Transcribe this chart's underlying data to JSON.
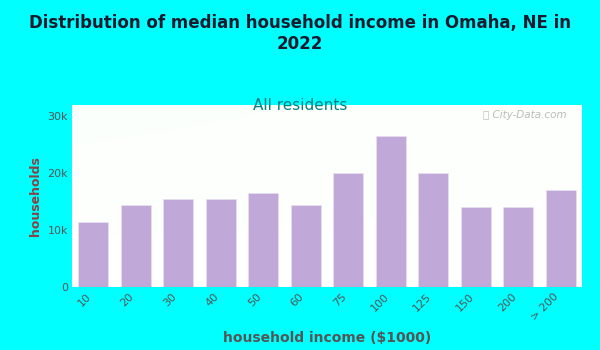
{
  "title": "Distribution of median household income in Omaha, NE in\n2022",
  "subtitle": "All residents",
  "xlabel": "household income ($1000)",
  "ylabel": "households",
  "background_color": "#00FFFF",
  "bar_color": "#c0a8d8",
  "bar_edge_color": "#e8e0f0",
  "categories": [
    "10",
    "20",
    "30",
    "40",
    "50",
    "60",
    "75",
    "100",
    "125",
    "150",
    "200",
    "> 200"
  ],
  "values": [
    11500,
    14500,
    15500,
    15500,
    16500,
    14500,
    20000,
    26500,
    20000,
    14000,
    14000,
    17000
  ],
  "yticks": [
    0,
    10000,
    20000,
    30000
  ],
  "ytick_labels": [
    "0",
    "10k",
    "20k",
    "30k"
  ],
  "ylim": [
    0,
    32000
  ],
  "title_color": "#1a1a2e",
  "subtitle_color": "#008080",
  "axis_label_color": "#555555",
  "ylabel_color": "#884444",
  "watermark_text": "City-Data.com",
  "title_fontsize": 12,
  "subtitle_fontsize": 11,
  "xlabel_fontsize": 10,
  "ylabel_fontsize": 9,
  "tick_fontsize": 8
}
